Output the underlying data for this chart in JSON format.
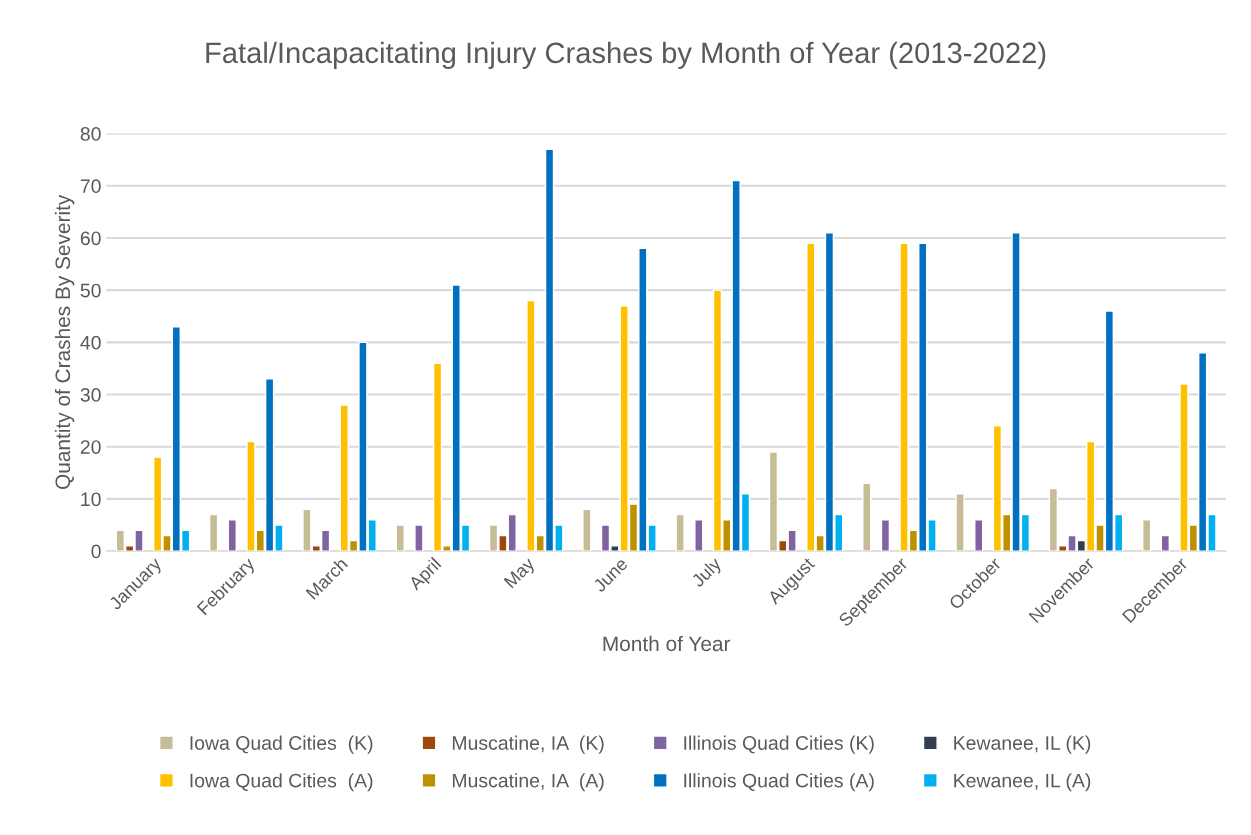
{
  "chart_data": {
    "type": "bar",
    "title": "Fatal/Incapacitating Injury Crashes by Month of Year (2013-2022)",
    "xlabel": "Month of Year",
    "ylabel": "Quantity of Crashes By Severity",
    "categories": [
      "January",
      "February",
      "March",
      "April",
      "May",
      "June",
      "July",
      "August",
      "September",
      "October",
      "November",
      "December"
    ],
    "series": [
      {
        "name": "Iowa Quad Cities  (K)",
        "color": "#c6bd97",
        "values": [
          4,
          7,
          8,
          5,
          5,
          8,
          7,
          19,
          13,
          11,
          12,
          6
        ]
      },
      {
        "name": "Muscatine, IA  (K)",
        "color": "#9e480e",
        "values": [
          1,
          null,
          1,
          null,
          3,
          null,
          null,
          2,
          null,
          null,
          1,
          null
        ]
      },
      {
        "name": "Illinois Quad Cities (K)",
        "color": "#8064a2",
        "values": [
          4,
          6,
          4,
          5,
          7,
          5,
          6,
          4,
          6,
          6,
          3,
          3
        ]
      },
      {
        "name": "Kewanee, IL (K)",
        "color": "#333f50",
        "values": [
          null,
          null,
          null,
          null,
          null,
          1,
          null,
          null,
          null,
          null,
          2,
          null
        ]
      },
      {
        "name": "Iowa Quad Cities  (A)",
        "color": "#ffc000",
        "values": [
          18,
          21,
          28,
          36,
          48,
          47,
          50,
          59,
          59,
          24,
          21,
          32
        ]
      },
      {
        "name": "Muscatine, IA  (A)",
        "color": "#bf9000",
        "values": [
          3,
          4,
          2,
          1,
          3,
          9,
          6,
          3,
          4,
          7,
          5,
          5
        ]
      },
      {
        "name": "Illinois Quad Cities (A)",
        "color": "#0070c0",
        "values": [
          43,
          33,
          40,
          51,
          77,
          58,
          71,
          61,
          59,
          61,
          46,
          38
        ]
      },
      {
        "name": "Kewanee, IL (A)",
        "color": "#00b0f0",
        "values": [
          4,
          5,
          6,
          5,
          5,
          5,
          11,
          7,
          6,
          7,
          7,
          7
        ]
      }
    ],
    "ylim": [
      0,
      80
    ],
    "yticks": [
      0,
      10,
      20,
      30,
      40,
      50,
      60,
      70,
      80
    ],
    "grid": "y",
    "legend": "bottom"
  }
}
